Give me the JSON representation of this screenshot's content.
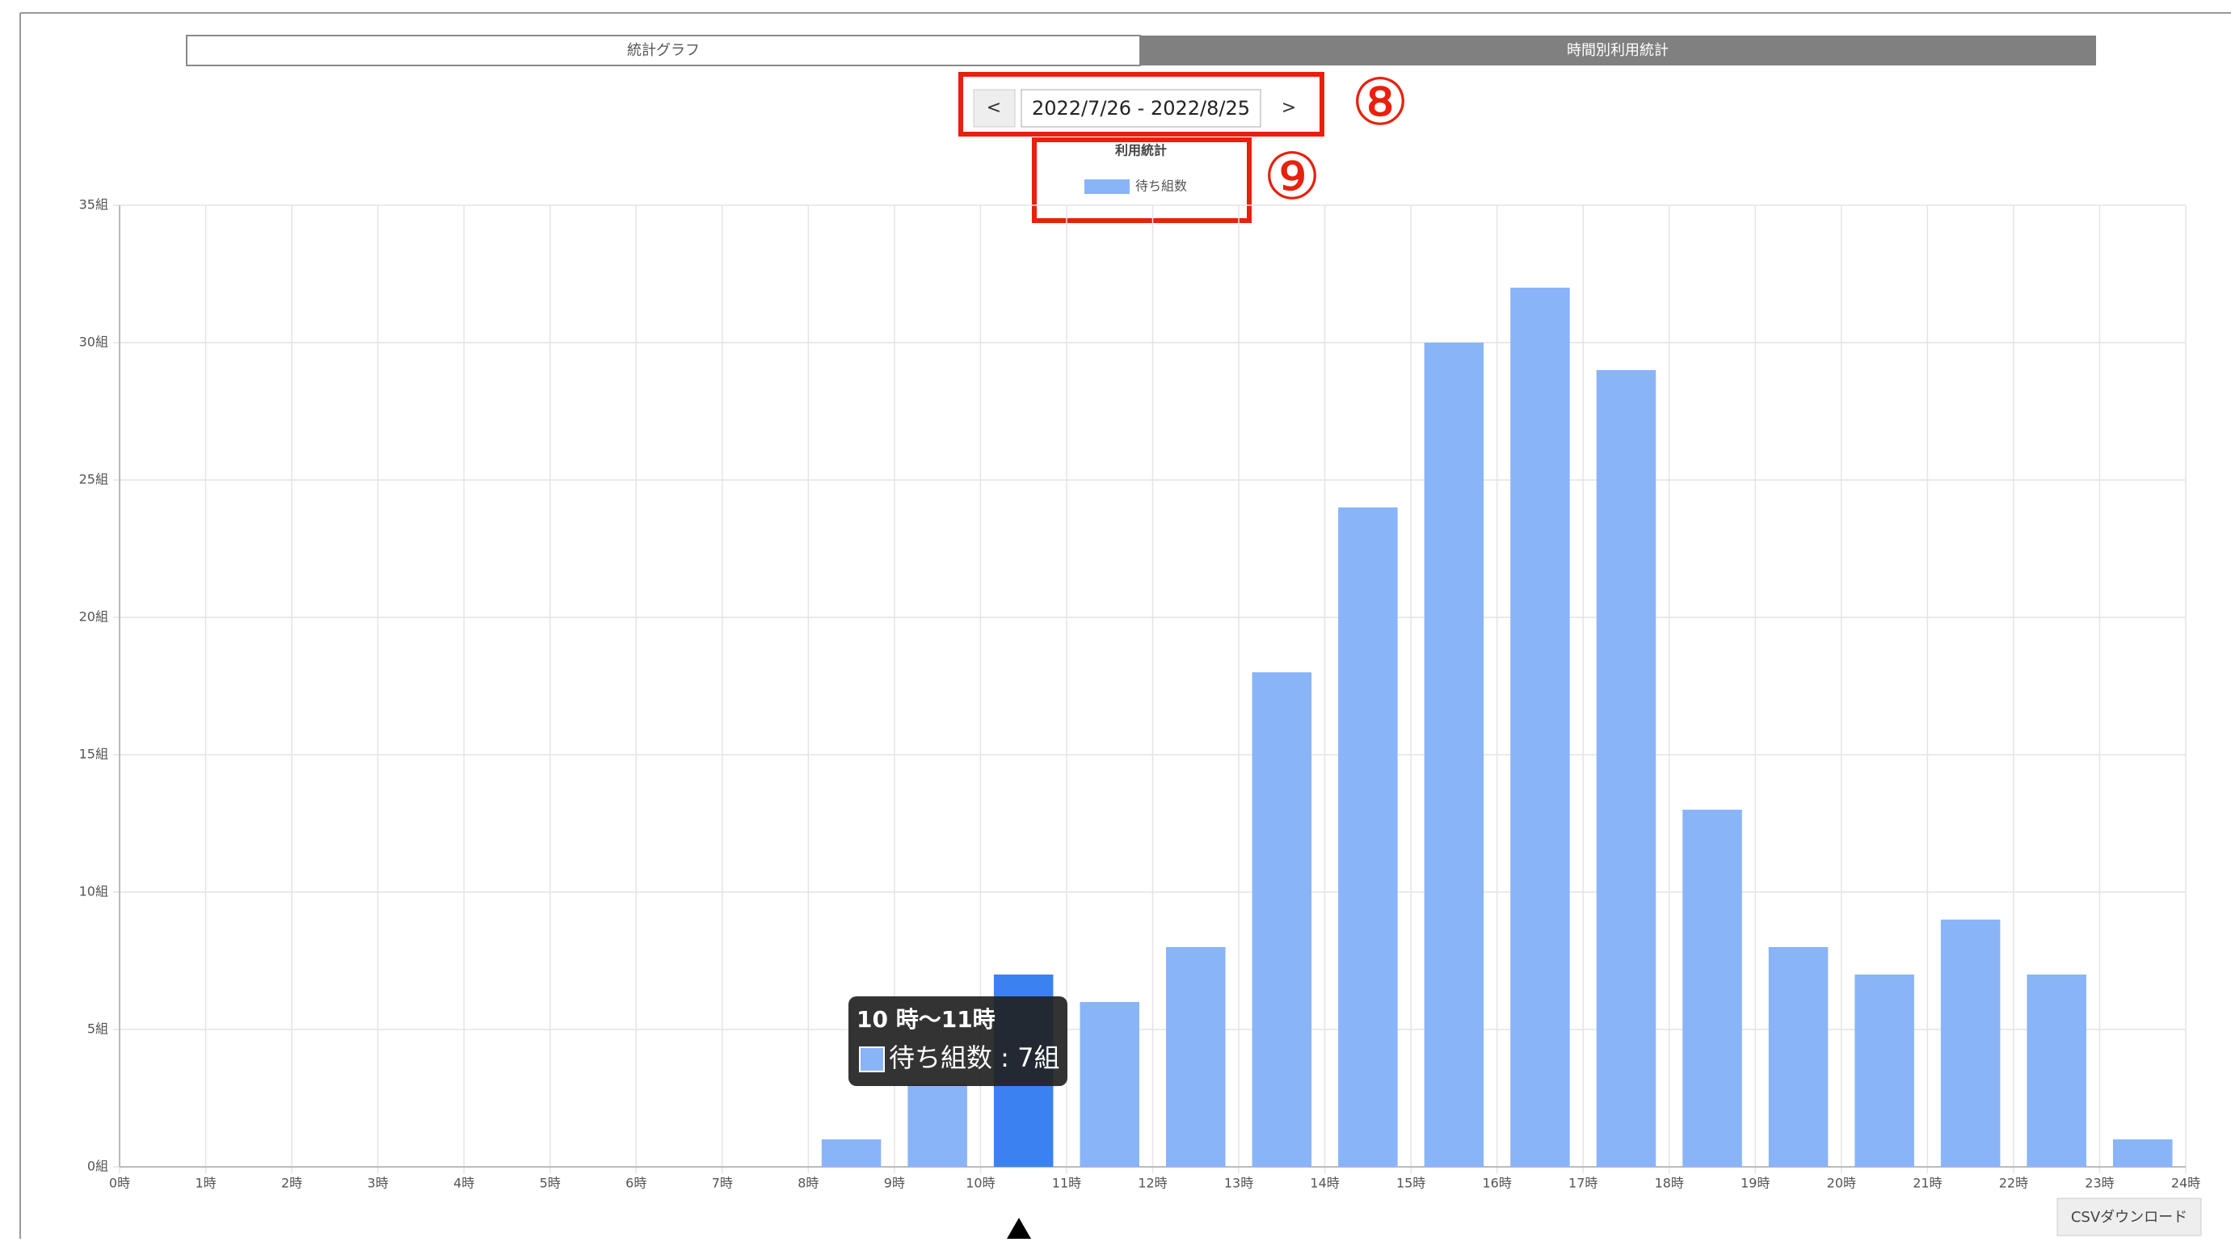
{
  "tabs": [
    "統計グラフ",
    "時間別利用統計"
  ],
  "date_nav": {
    "prev": "<",
    "range": "2022/7/26 - 2022/8/25",
    "next": ">"
  },
  "annotations": [
    "⑧",
    "⑨"
  ],
  "csv_button": "CSVダウンロード",
  "tooltip": {
    "title": "10 時〜11時",
    "body": "待ち組数 : 7組"
  },
  "chart_data": {
    "type": "histogram",
    "title": "利用統計",
    "series": [
      {
        "name": "待ち組数",
        "color": "#8ab4f8",
        "highlight_color": "#3b82f0",
        "highlight": 10,
        "values": [
          0,
          0,
          0,
          0,
          0,
          0,
          0,
          0,
          1,
          3,
          7,
          6,
          8,
          18,
          24,
          30,
          32,
          29,
          13,
          8,
          7,
          9,
          7,
          1
        ]
      }
    ],
    "bins": [
      0,
      1,
      2,
      3,
      4,
      5,
      6,
      7,
      8,
      9,
      10,
      11,
      12,
      13,
      14,
      15,
      16,
      17,
      18,
      19,
      20,
      21,
      22,
      23,
      24
    ],
    "xlim": [
      0,
      24
    ],
    "xticks": [
      {
        "value": 0,
        "label": "0時"
      },
      {
        "value": 1,
        "label": "1時"
      },
      {
        "value": 2,
        "label": "2時"
      },
      {
        "value": 3,
        "label": "3時"
      },
      {
        "value": 4,
        "label": "4時"
      },
      {
        "value": 5,
        "label": "5時"
      },
      {
        "value": 6,
        "label": "6時"
      },
      {
        "value": 7,
        "label": "7時"
      },
      {
        "value": 8,
        "label": "8時"
      },
      {
        "value": 9,
        "label": "9時"
      },
      {
        "value": 10,
        "label": "10時"
      },
      {
        "value": 11,
        "label": "11時"
      },
      {
        "value": 12,
        "label": "12時"
      },
      {
        "value": 13,
        "label": "13時"
      },
      {
        "value": 14,
        "label": "14時"
      },
      {
        "value": 15,
        "label": "15時"
      },
      {
        "value": 16,
        "label": "16時"
      },
      {
        "value": 17,
        "label": "17時"
      },
      {
        "value": 18,
        "label": "18時"
      },
      {
        "value": 19,
        "label": "19時"
      },
      {
        "value": 20,
        "label": "20時"
      },
      {
        "value": 21,
        "label": "21時"
      },
      {
        "value": 22,
        "label": "22時"
      },
      {
        "value": 23,
        "label": "23時"
      },
      {
        "value": 24,
        "label": "24時"
      }
    ],
    "ylim": [
      0,
      35
    ],
    "yticks": [
      {
        "value": 0,
        "label": "0組"
      },
      {
        "value": 5,
        "label": "5組"
      },
      {
        "value": 10,
        "label": "10組"
      },
      {
        "value": 15,
        "label": "15組"
      },
      {
        "value": 20,
        "label": "20組"
      },
      {
        "value": 25,
        "label": "25組"
      },
      {
        "value": 30,
        "label": "30組"
      },
      {
        "value": 35,
        "label": "35組"
      }
    ],
    "grid": true
  }
}
